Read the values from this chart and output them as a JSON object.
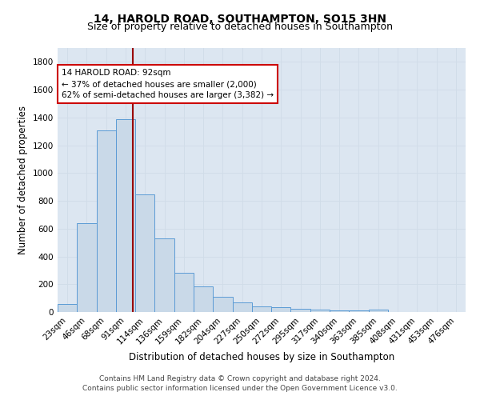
{
  "title1": "14, HAROLD ROAD, SOUTHAMPTON, SO15 3HN",
  "title2": "Size of property relative to detached houses in Southampton",
  "xlabel": "Distribution of detached houses by size in Southampton",
  "ylabel": "Number of detached properties",
  "categories": [
    "23sqm",
    "46sqm",
    "68sqm",
    "91sqm",
    "114sqm",
    "136sqm",
    "159sqm",
    "182sqm",
    "204sqm",
    "227sqm",
    "250sqm",
    "272sqm",
    "295sqm",
    "317sqm",
    "340sqm",
    "363sqm",
    "385sqm",
    "408sqm",
    "431sqm",
    "453sqm",
    "476sqm"
  ],
  "values": [
    55,
    640,
    1305,
    1385,
    845,
    530,
    285,
    185,
    110,
    70,
    40,
    35,
    25,
    15,
    10,
    10,
    20,
    0,
    0,
    0,
    0
  ],
  "bar_color": "#c9d9e8",
  "bar_edge_color": "#5b9bd5",
  "grid_color": "#d0dce8",
  "bg_color": "#dce6f1",
  "vline_x": 3.35,
  "vline_color": "#990000",
  "annotation_text": "14 HAROLD ROAD: 92sqm\n← 37% of detached houses are smaller (2,000)\n62% of semi-detached houses are larger (3,382) →",
  "annotation_box_color": "#ffffff",
  "annotation_box_edge": "#cc0000",
  "ylim": [
    0,
    1900
  ],
  "yticks": [
    0,
    200,
    400,
    600,
    800,
    1000,
    1200,
    1400,
    1600,
    1800
  ],
  "footnote1": "Contains HM Land Registry data © Crown copyright and database right 2024.",
  "footnote2": "Contains public sector information licensed under the Open Government Licence v3.0.",
  "title1_fontsize": 10,
  "title2_fontsize": 9,
  "xlabel_fontsize": 8.5,
  "ylabel_fontsize": 8.5,
  "tick_fontsize": 7.5,
  "footnote_fontsize": 6.5,
  "annot_fontsize": 7.5
}
